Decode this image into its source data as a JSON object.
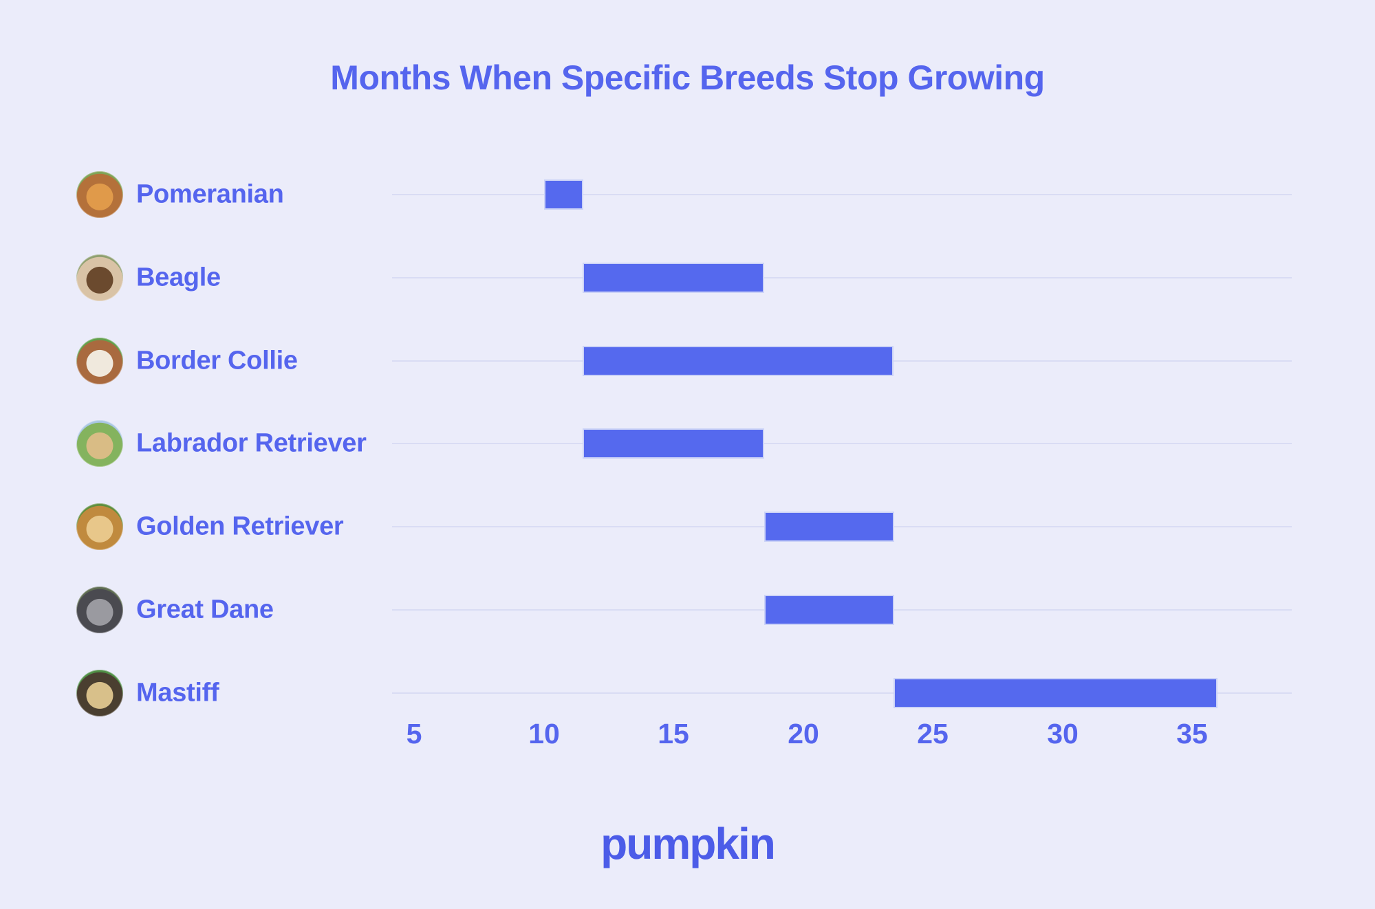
{
  "title": "Months When Specific Breeds Stop Growing",
  "brand": {
    "logo_text": "pumpkin"
  },
  "colors": {
    "background": "#ebecfa",
    "text": "#5565ee",
    "bar_fill": "#5569ee",
    "bar_border": "#ccd3f7",
    "gridline": "#d9dcf4",
    "brand": "#4c5ce8"
  },
  "chart_data": {
    "type": "bar",
    "subtype": "horizontal-range-bars",
    "title": "Months When Specific Breeds Stop Growing",
    "xlabel": "",
    "ylabel": "",
    "unit": "months",
    "x_ticks": [
      5,
      10,
      15,
      20,
      25,
      30,
      35
    ],
    "x_range": [
      4.2,
      38.8
    ],
    "grid": "horizontal row lines only",
    "legend": "none",
    "series": [
      {
        "label": "Pomeranian",
        "start": 10,
        "end": 11.5,
        "photo": "pomeranian-photo",
        "photo_colors": [
          "#e09a4a",
          "#b4713a",
          "#7fa457"
        ]
      },
      {
        "label": "Beagle",
        "start": 11.5,
        "end": 18.5,
        "photo": "beagle-photo",
        "photo_colors": [
          "#6b4a2e",
          "#d9c3a6",
          "#8fa070"
        ]
      },
      {
        "label": "Border Collie",
        "start": 11.5,
        "end": 23.5,
        "photo": "border-collie-photo",
        "photo_colors": [
          "#f0e9dd",
          "#a96a3f",
          "#63a04c"
        ]
      },
      {
        "label": "Labrador Retriever",
        "start": 11.5,
        "end": 18.5,
        "photo": "labrador-retriever-photo",
        "photo_colors": [
          "#d9bc85",
          "#84b35e",
          "#a9c6e4"
        ]
      },
      {
        "label": "Golden Retriever",
        "start": 18.5,
        "end": 23.5,
        "photo": "golden-retriever-photo",
        "photo_colors": [
          "#e8c78a",
          "#c08a3e",
          "#5e8f3e"
        ]
      },
      {
        "label": "Great Dane",
        "start": 18.5,
        "end": 23.5,
        "photo": "great-dane-photo",
        "photo_colors": [
          "#9a9aa0",
          "#4a4a50",
          "#5f6d52"
        ]
      },
      {
        "label": "Mastiff",
        "start": 23.5,
        "end": 36,
        "photo": "mastiff-photo",
        "photo_colors": [
          "#d8c08a",
          "#4a3f30",
          "#4f8f45"
        ]
      }
    ]
  }
}
